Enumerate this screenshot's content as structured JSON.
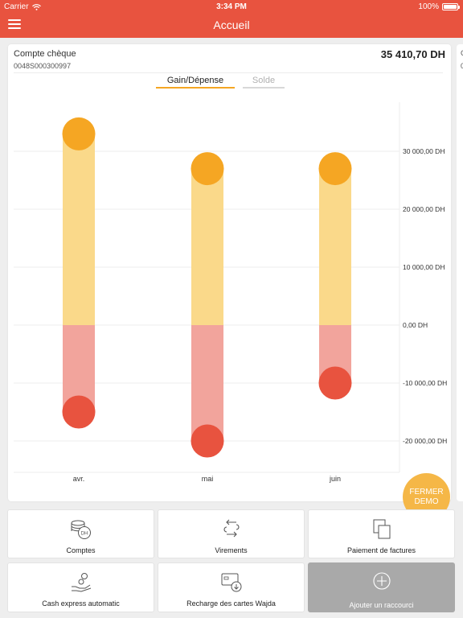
{
  "status_bar": {
    "carrier": "Carrier",
    "time": "3:34 PM",
    "battery": "100%"
  },
  "nav": {
    "title": "Accueil"
  },
  "account": {
    "name": "Compte chèque",
    "number": "0048S000300997",
    "balance": "35 410,70 DH"
  },
  "next_card_peek": {
    "letter_top": "C",
    "letter_bottom": "0"
  },
  "tabs": [
    {
      "label": "Gain/Dépense",
      "active": true
    },
    {
      "label": "Solde",
      "active": false
    }
  ],
  "chart_data": {
    "type": "bar",
    "categories": [
      "avr.",
      "mai",
      "juin"
    ],
    "series": [
      {
        "values": [
          33000,
          27000,
          27000
        ],
        "color": "#f5a623"
      },
      {
        "values": [
          -15000,
          -20000,
          -10000
        ],
        "color": "#e8533f"
      }
    ],
    "yticks": [
      30000,
      20000,
      10000,
      0,
      -10000,
      -20000
    ],
    "ytick_labels": [
      "30 000,00 DH",
      "20 000,00 DH",
      "10 000,00 DH",
      "0,00 DH",
      "-10 000,00 DH",
      "-20 000,00 DH"
    ],
    "ylim": [
      -25000,
      38000
    ],
    "grid": true,
    "colors": {
      "gain_bar": "#fad98a",
      "gain_dot": "#f5a623",
      "loss_bar": "#f2a49c",
      "loss_dot": "#e8533f"
    }
  },
  "demo_button": {
    "line1": "FERMER",
    "line2": "DEMO"
  },
  "shortcuts": [
    {
      "label": "Comptes",
      "icon": "coins-dh-icon"
    },
    {
      "label": "Virements",
      "icon": "transfer-arrows-icon"
    },
    {
      "label": "Paiement de factures",
      "icon": "copy-documents-icon"
    },
    {
      "label": "Cash express automatic",
      "icon": "hand-coin-icon"
    },
    {
      "label": "Recharge des cartes Wajda",
      "icon": "card-reload-icon"
    },
    {
      "label": "Ajouter un raccourci",
      "icon": "plus-circle-icon"
    }
  ],
  "theme": {
    "brand": "#e8533f",
    "accent": "#f5a623"
  }
}
